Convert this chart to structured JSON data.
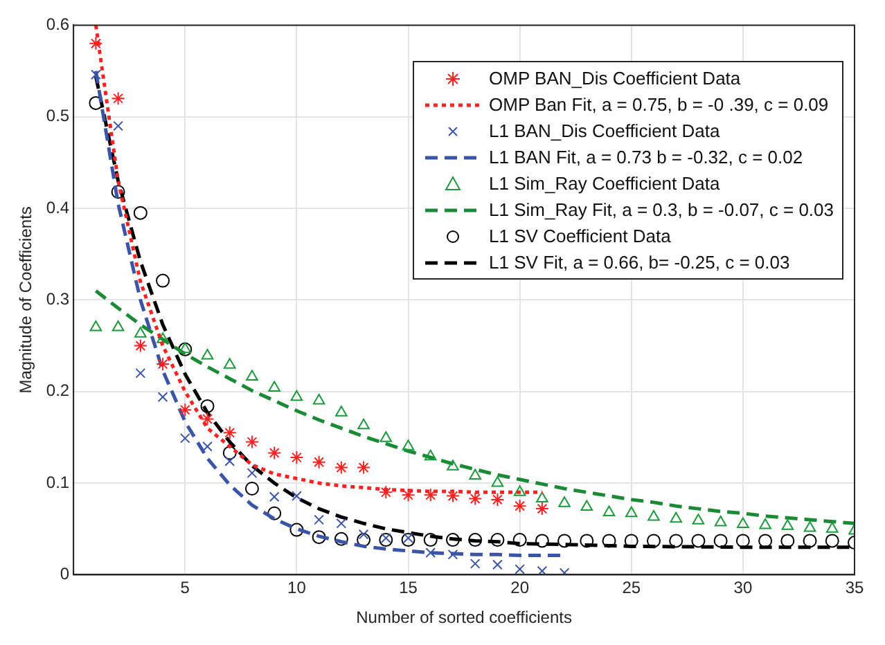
{
  "chart_data": {
    "type": "scatter",
    "xlabel": "Number of sorted coefficients",
    "ylabel": "Magnitude of Coefficients",
    "xlim": [
      0,
      35
    ],
    "ylim": [
      0,
      0.6
    ],
    "xticks": [
      {
        "value": 0,
        "label": null
      },
      5,
      10,
      15,
      20,
      25,
      30,
      35
    ],
    "yticks": [
      0,
      0.1,
      0.2,
      0.3,
      0.4,
      0.5,
      0.6
    ],
    "grid": true,
    "legend": "top right",
    "series": [
      {
        "name": "OMP BAN_Dis Coefficient Data",
        "type": "scatter",
        "color": "#ff2020",
        "x": [
          1,
          2,
          3,
          4,
          5,
          6,
          7,
          8,
          9,
          10,
          11,
          12,
          13,
          14,
          15,
          16,
          17,
          18,
          19,
          20,
          21
        ],
        "values": [
          0.58,
          0.52,
          0.25,
          0.23,
          0.18,
          0.17,
          0.155,
          0.145,
          0.133,
          0.128,
          0.123,
          0.117,
          0.117,
          0.09,
          0.087,
          0.087,
          0.086,
          0.083,
          0.082,
          0.075,
          0.072
        ]
      },
      {
        "name": "OMP Ban Fit, a = 0.75, b = -0 .39, c = 0.09",
        "type": "line",
        "marker": "none",
        "line_style": "dotted",
        "color": "#ff2020",
        "x": [
          1,
          2,
          3,
          4,
          5,
          6,
          7,
          8,
          9,
          10,
          11,
          12,
          13,
          14,
          15,
          16,
          17,
          18,
          19,
          20,
          21
        ],
        "values": [
          0.6,
          0.43,
          0.32,
          0.25,
          0.2,
          0.16,
          0.14,
          0.12,
          0.11,
          0.105,
          0.1,
          0.097,
          0.095,
          0.093,
          0.092,
          0.091,
          0.091,
          0.09,
          0.09,
          0.09,
          0.09
        ]
      },
      {
        "name": "L1 BAN_Dis Coefficient Data",
        "type": "scatter",
        "marker": "cross",
        "color": "#3a55a8",
        "x": [
          1,
          2,
          3,
          4,
          5,
          6,
          7,
          8,
          9,
          10,
          11,
          12,
          13,
          14,
          15,
          16,
          17,
          18,
          19,
          20,
          21,
          22
        ],
        "values": [
          0.546,
          0.49,
          0.22,
          0.194,
          0.149,
          0.14,
          0.124,
          0.111,
          0.085,
          0.086,
          0.06,
          0.056,
          0.044,
          0.04,
          0.04,
          0.024,
          0.022,
          0.012,
          0.011,
          0.006,
          0.004,
          0.002
        ]
      },
      {
        "name": "L1 BAN Fit, a = 0.73 b = -0.32, c = 0.02",
        "type": "line",
        "marker": "none",
        "line_style": "dashed",
        "color": "#3a55a8",
        "x": [
          1,
          2,
          3,
          4,
          5,
          6,
          7,
          8,
          9,
          10,
          11,
          12,
          13,
          14,
          15,
          16,
          17,
          18,
          19,
          20,
          21,
          22
        ],
        "values": [
          0.55,
          0.405,
          0.3,
          0.223,
          0.167,
          0.127,
          0.098,
          0.076,
          0.061,
          0.05,
          0.042,
          0.036,
          0.031,
          0.028,
          0.026,
          0.024,
          0.023,
          0.022,
          0.022,
          0.021,
          0.021,
          0.021
        ]
      },
      {
        "name": "L1 Sim_Ray Coefficient Data",
        "type": "scatter",
        "marker": "triangle",
        "color": "#1a9a3a",
        "x": [
          1,
          2,
          3,
          4,
          5,
          6,
          7,
          8,
          9,
          10,
          11,
          12,
          13,
          14,
          15,
          16,
          17,
          18,
          19,
          20,
          21,
          22,
          23,
          24,
          25,
          26,
          27,
          28,
          29,
          30,
          31,
          32,
          33,
          34,
          35
        ],
        "values": [
          0.27,
          0.27,
          0.263,
          0.257,
          0.246,
          0.239,
          0.229,
          0.216,
          0.204,
          0.194,
          0.19,
          0.177,
          0.163,
          0.149,
          0.14,
          0.129,
          0.118,
          0.108,
          0.1,
          0.09,
          0.083,
          0.078,
          0.074,
          0.068,
          0.067,
          0.063,
          0.061,
          0.059,
          0.057,
          0.055,
          0.054,
          0.053,
          0.051,
          0.05,
          0.048
        ]
      },
      {
        "name": "L1 Sim_Ray Fit, a = 0.3, b = -0.07, c = 0.03",
        "type": "line",
        "marker": "none",
        "line_style": "dashed",
        "color": "#1a8a35",
        "x": [
          1,
          2,
          3,
          4,
          5,
          6,
          7,
          8,
          9,
          10,
          11,
          12,
          13,
          14,
          15,
          16,
          17,
          18,
          19,
          20,
          21,
          22,
          23,
          24,
          25,
          26,
          27,
          28,
          29,
          30,
          31,
          32,
          33,
          34,
          35
        ],
        "values": [
          0.31,
          0.291,
          0.273,
          0.257,
          0.241,
          0.227,
          0.214,
          0.201,
          0.19,
          0.179,
          0.169,
          0.16,
          0.151,
          0.143,
          0.135,
          0.128,
          0.121,
          0.115,
          0.109,
          0.104,
          0.099,
          0.094,
          0.09,
          0.086,
          0.082,
          0.079,
          0.075,
          0.072,
          0.069,
          0.067,
          0.064,
          0.062,
          0.06,
          0.058,
          0.056
        ]
      },
      {
        "name": "L1 SV Coefficient Data",
        "type": "scatter",
        "marker": "circle",
        "color": "#000000",
        "x": [
          1,
          2,
          3,
          4,
          5,
          6,
          7,
          8,
          9,
          10,
          11,
          12,
          13,
          14,
          15,
          16,
          17,
          18,
          19,
          20,
          21,
          22,
          23,
          24,
          25,
          26,
          27,
          28,
          29,
          30,
          31,
          32,
          33,
          34,
          35
        ],
        "values": [
          0.515,
          0.418,
          0.395,
          0.321,
          0.246,
          0.184,
          0.133,
          0.094,
          0.067,
          0.049,
          0.041,
          0.039,
          0.038,
          0.038,
          0.038,
          0.038,
          0.038,
          0.038,
          0.038,
          0.038,
          0.037,
          0.037,
          0.037,
          0.037,
          0.037,
          0.037,
          0.037,
          0.037,
          0.037,
          0.037,
          0.037,
          0.037,
          0.037,
          0.037,
          0.035
        ]
      },
      {
        "name": "L1 SV Fit, a = 0.66, b= -0.25, c = 0.03",
        "type": "line",
        "marker": "none",
        "line_style": "dashed",
        "color": "#000000",
        "x": [
          1,
          2,
          3,
          4,
          5,
          6,
          7,
          8,
          9,
          10,
          11,
          12,
          13,
          14,
          15,
          16,
          17,
          18,
          19,
          20,
          22,
          25,
          30,
          35
        ],
        "values": [
          0.544,
          0.43,
          0.342,
          0.273,
          0.219,
          0.177,
          0.145,
          0.119,
          0.1,
          0.084,
          0.072,
          0.063,
          0.056,
          0.05,
          0.046,
          0.042,
          0.039,
          0.037,
          0.036,
          0.034,
          0.033,
          0.031,
          0.03,
          0.03
        ]
      }
    ]
  }
}
